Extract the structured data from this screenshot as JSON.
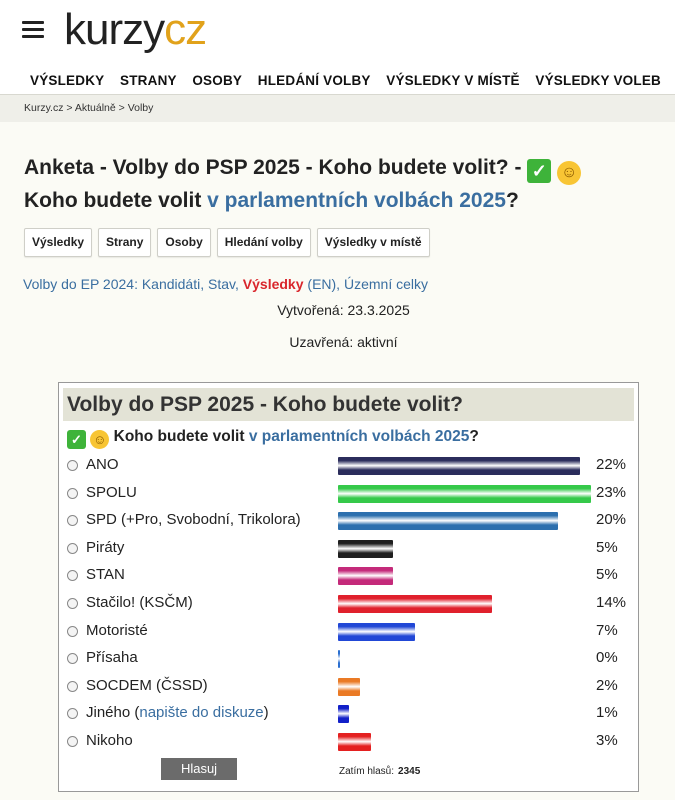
{
  "site": {
    "logo_main": "kurzy",
    "logo_accent": "cz"
  },
  "nav": [
    "VÝSLEDKY",
    "STRANY",
    "OSOBY",
    "HLEDÁNÍ VOLBY",
    "VÝSLEDKY V MÍSTĚ",
    "VÝSLEDKY VOLEB"
  ],
  "breadcrumb": "Kurzy.cz > Aktuálně > Volby",
  "heading": {
    "line1": "Anketa - Volby do PSP 2025 - Koho budete volit? -",
    "line2_a": "Koho budete volit ",
    "line2_link": "v parlamentních volbách 2025",
    "line2_b": "?"
  },
  "buttons": [
    "Výsledky",
    "Strany",
    "Osoby",
    "Hledání volby",
    "Výsledky v místě"
  ],
  "ep_links": {
    "prefix": "Volby do EP 2024",
    "kandidati": "Kandidáti",
    "stav": "Stav",
    "vysledky": "Výsledky",
    "en": "EN",
    "uzemni": "Územní celky"
  },
  "meta": {
    "created_label": "Vytvořená:",
    "created_value": "23.3.2025",
    "closed_label": "Uzavřená:",
    "closed_value": "aktivní"
  },
  "poll": {
    "title": "Volby do PSP 2025 - Koho budete volit?",
    "question_a": "Koho budete volit ",
    "question_link": "v parlamentních volbách 2025",
    "question_b": "?",
    "vote_label": "Hlasuj",
    "total_label": "Zatím hlasů:",
    "total_value": "2345",
    "options": [
      {
        "label": "ANO",
        "pct": "22%",
        "value": 22,
        "color": "#2b2d5c"
      },
      {
        "label": "SPOLU",
        "pct": "23%",
        "value": 23,
        "color": "#35c94a"
      },
      {
        "label": "SPD (+Pro, Svobodní, Trikolora)",
        "pct": "20%",
        "value": 20,
        "color": "#2c6fae"
      },
      {
        "label": "Piráty",
        "pct": "5%",
        "value": 5,
        "color": "#1e1e1e"
      },
      {
        "label": "STAN",
        "pct": "5%",
        "value": 5,
        "color": "#c42a7a"
      },
      {
        "label": "Stačilo! (KSČM)",
        "pct": "14%",
        "value": 14,
        "color": "#e0202c"
      },
      {
        "label": "Motoristé",
        "pct": "7%",
        "value": 7,
        "color": "#2147d6"
      },
      {
        "label": "Přísaha",
        "pct": "0%",
        "value": 0,
        "color": "#2b6fd0"
      },
      {
        "label": "SOCDEM (ČSSD)",
        "pct": "2%",
        "value": 2,
        "color": "#ea7a25"
      },
      {
        "label_a": "Jiného (",
        "label_link": "napište do diskuze",
        "label_b": ")",
        "pct": "1%",
        "value": 1,
        "color": "#1220c8"
      },
      {
        "label": "Nikoho",
        "pct": "3%",
        "value": 3,
        "color": "#e42020"
      }
    ]
  }
}
